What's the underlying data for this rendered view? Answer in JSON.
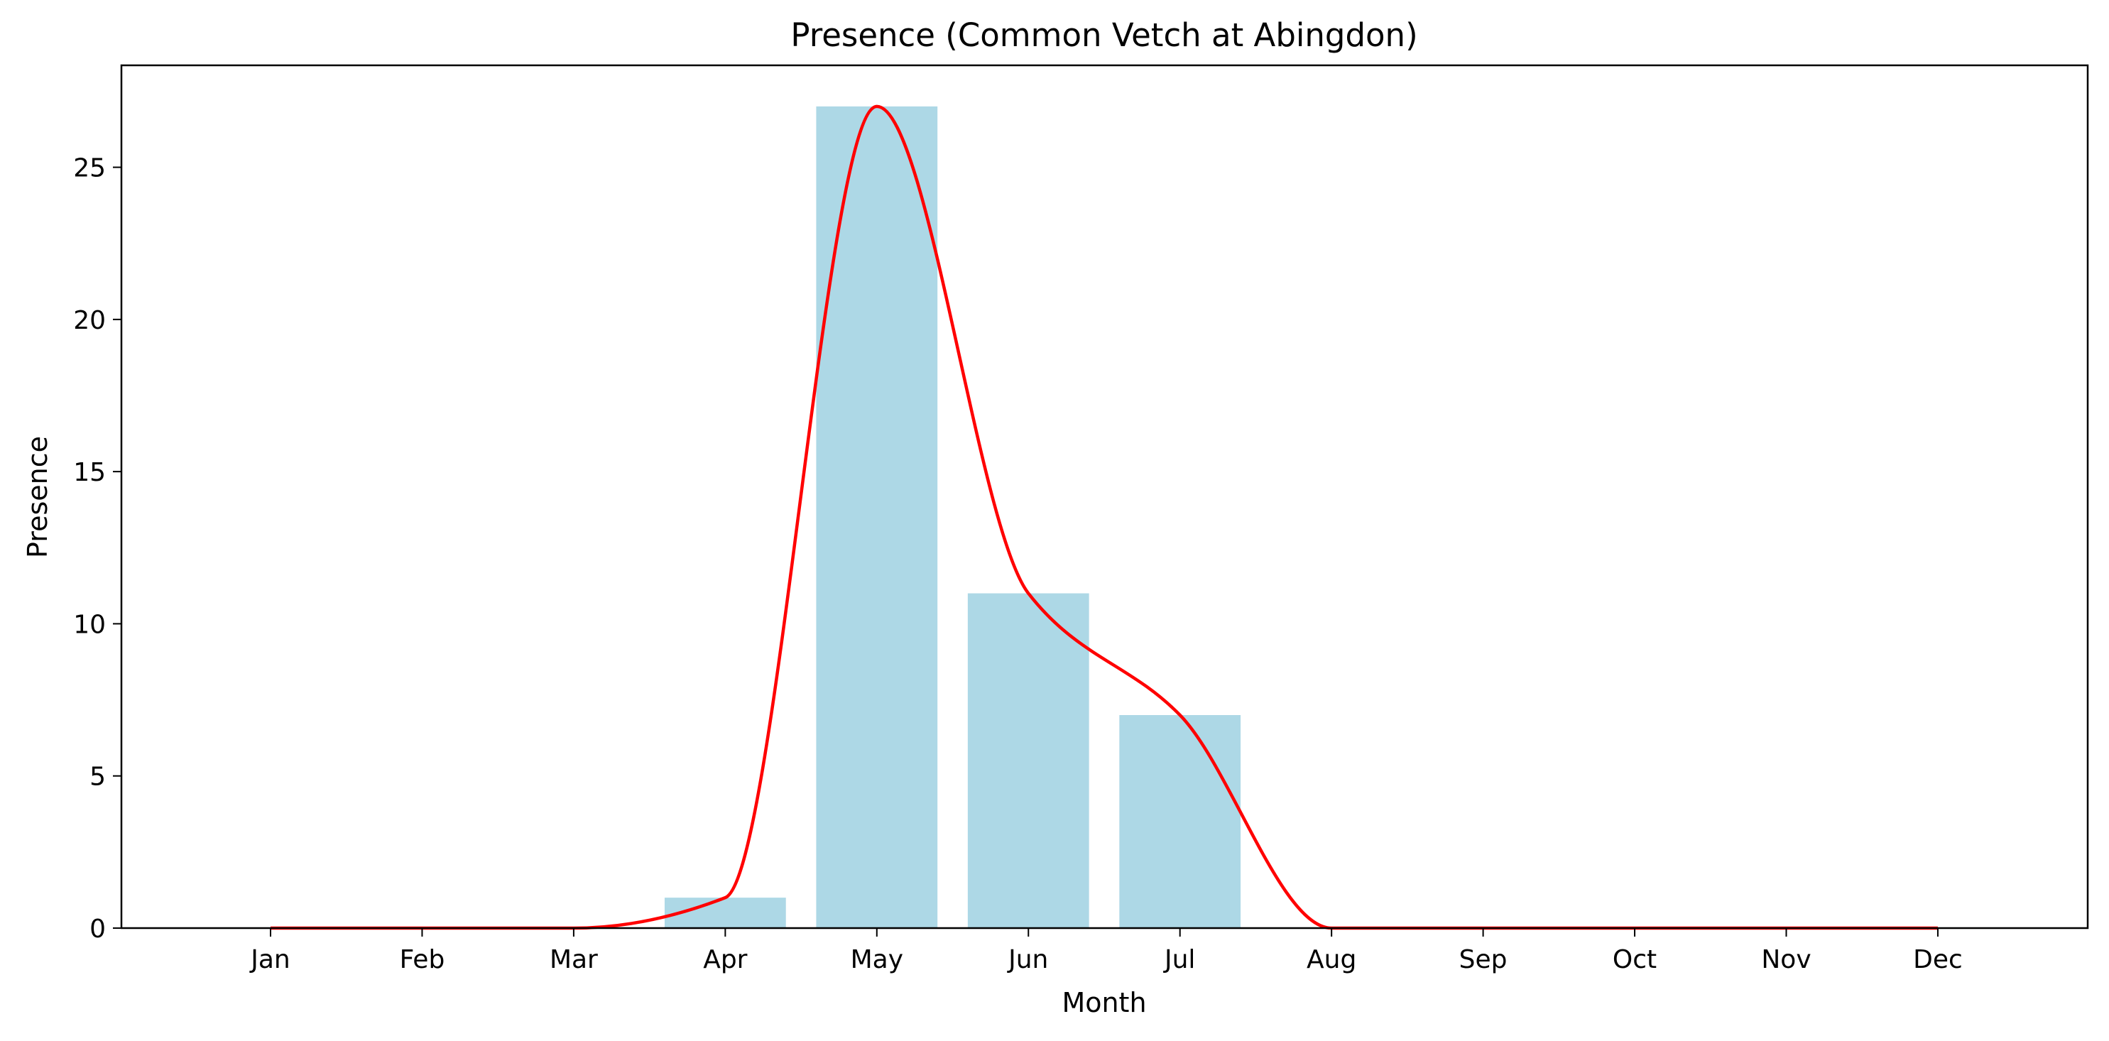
{
  "chart_data": {
    "type": "bar",
    "title": "Presence (Common Vetch at Abingdon)",
    "xlabel": "Month",
    "ylabel": "Presence",
    "categories": [
      "Jan",
      "Feb",
      "Mar",
      "Apr",
      "May",
      "Jun",
      "Jul",
      "Aug",
      "Sep",
      "Oct",
      "Nov",
      "Dec"
    ],
    "values": [
      0,
      0,
      0,
      1,
      27,
      11,
      7,
      0,
      0,
      0,
      0,
      0
    ],
    "ylim": [
      0,
      28.35
    ],
    "yticks": [
      0,
      5,
      10,
      15,
      20,
      25
    ],
    "grid": false,
    "bar_color": "#add8e6",
    "line_color": "#ff0000",
    "overlay": {
      "type": "line",
      "smooth": true,
      "values": [
        0,
        0,
        0,
        1,
        27,
        11,
        7,
        0,
        0,
        0,
        0,
        0
      ]
    }
  }
}
